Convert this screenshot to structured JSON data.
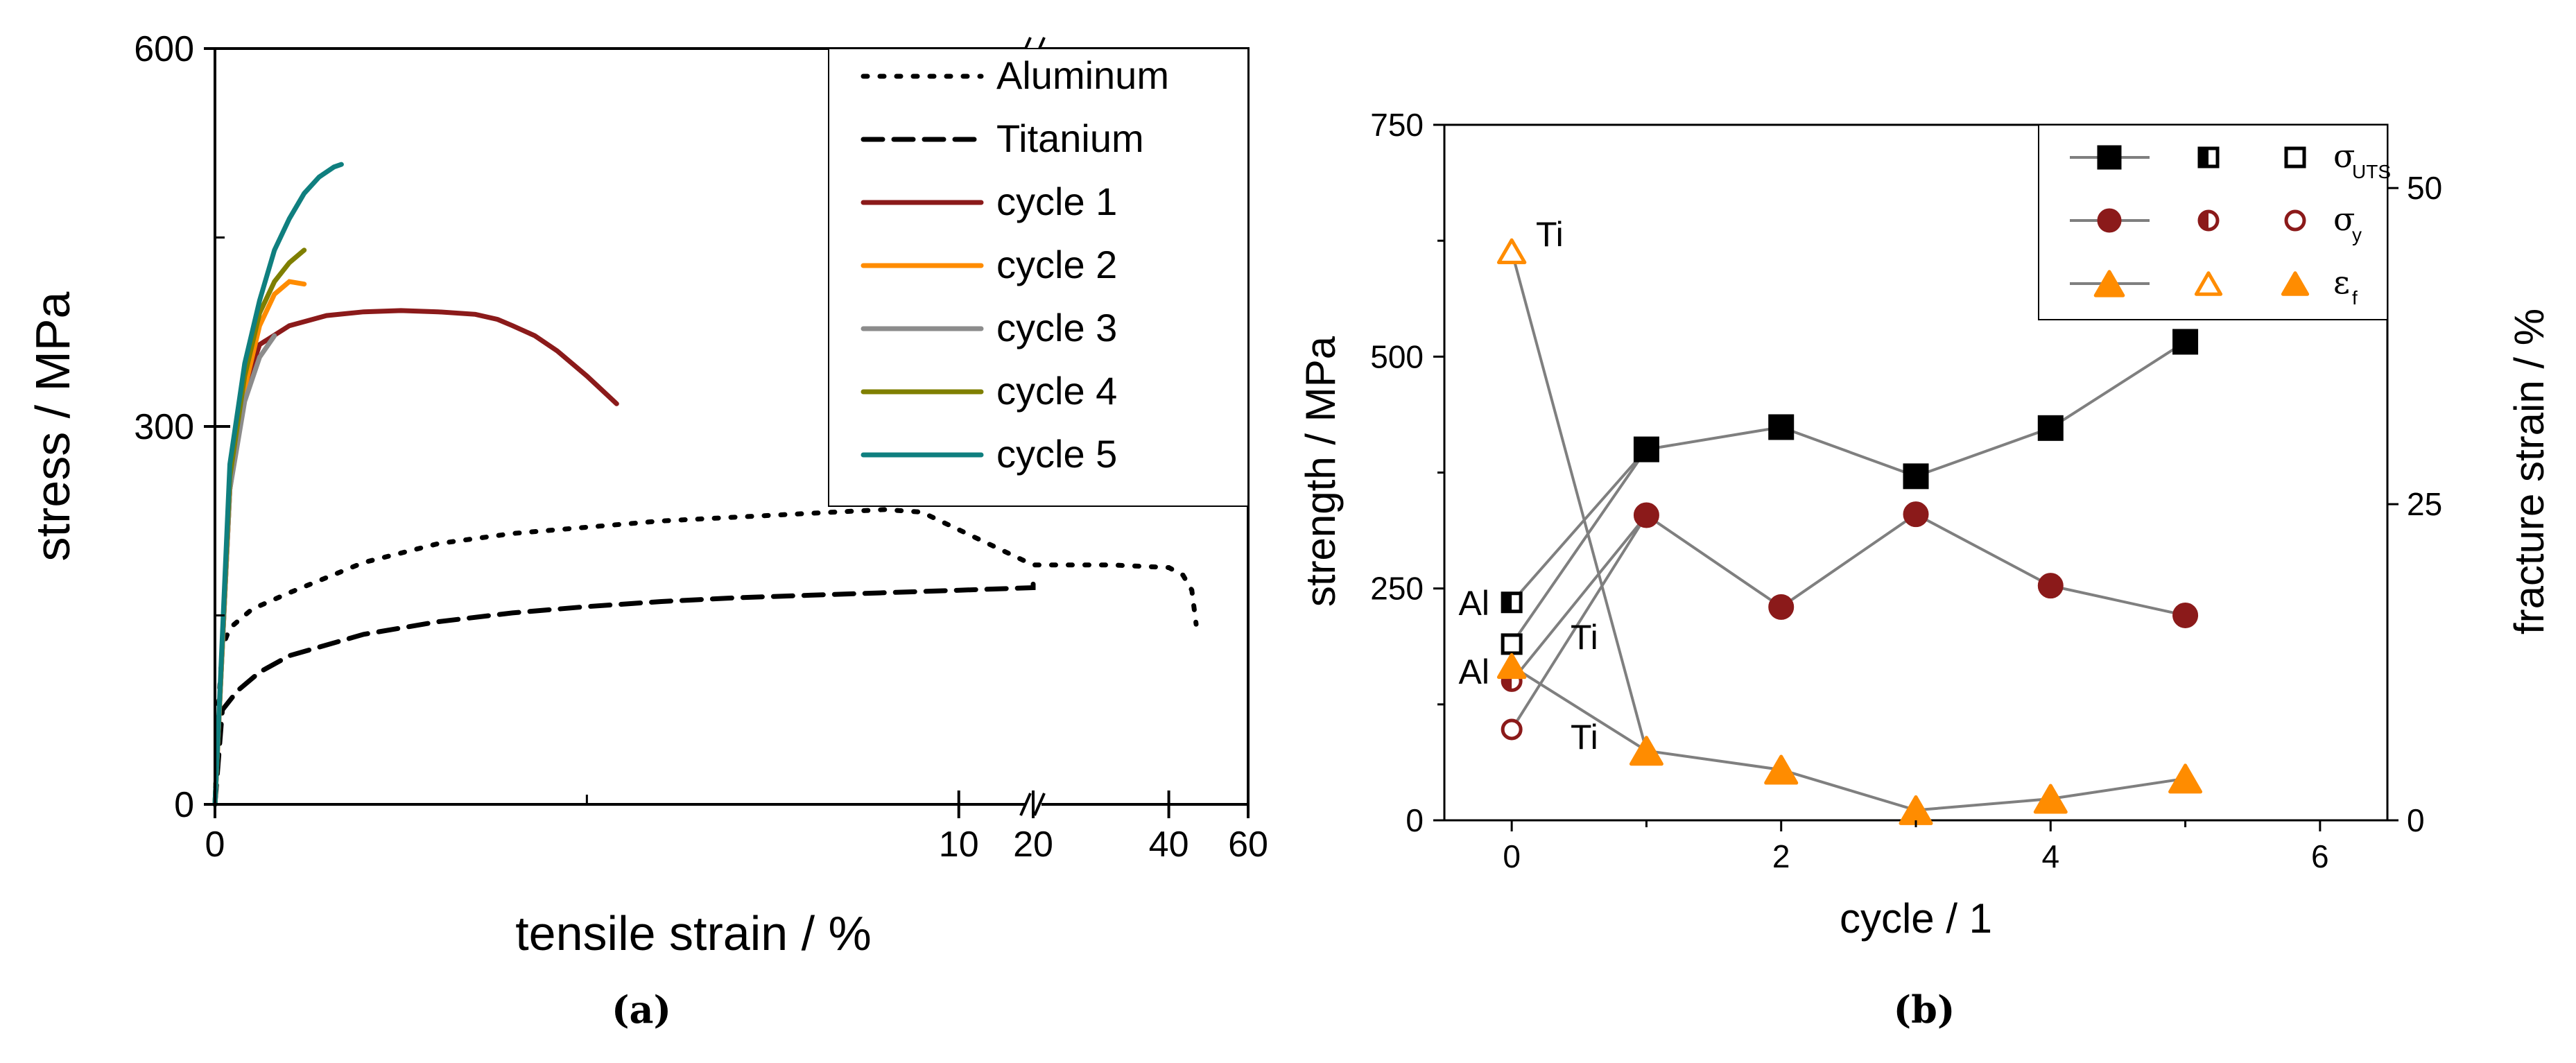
{
  "chart_data": [
    {
      "type": "line",
      "panel": "a",
      "caption": "(a)",
      "xlabel": "tensile strain / %",
      "ylabel": "stress / MPa",
      "x_ticks": [
        "0",
        "10",
        "20",
        "40",
        "60"
      ],
      "y_ticks": [
        "0",
        "300",
        "600"
      ],
      "x_axis_break": "between 11 and 20 % (broken axis, log-like upper segment 20–60 %)",
      "xlim_segment1": [
        0,
        11
      ],
      "xlim_segment2": [
        20,
        60
      ],
      "ylim": [
        0,
        600
      ],
      "legend_position": "top-right",
      "series": [
        {
          "name": "Aluminum",
          "style": "dotted",
          "color": "#000000",
          "x": [
            0,
            0.05,
            0.1,
            0.2,
            0.5,
            1,
            2,
            3,
            4,
            5,
            6,
            7,
            8,
            9,
            9.5,
            20,
            30,
            40,
            43,
            45,
            46
          ],
          "y": [
            0,
            80,
            125,
            140,
            155,
            168,
            192,
            207,
            215,
            220,
            225,
            228,
            231,
            234,
            232,
            190,
            190,
            188,
            182,
            170,
            143
          ]
        },
        {
          "name": "Titanium",
          "style": "dashed",
          "color": "#000000",
          "x": [
            0,
            0.1,
            0.3,
            0.6,
            1,
            2,
            3,
            4,
            5,
            6,
            7,
            8,
            9,
            10,
            11,
            20
          ],
          "y": [
            0,
            75,
            90,
            105,
            118,
            135,
            145,
            152,
            157,
            161,
            164,
            166,
            168,
            170,
            172,
            182
          ]
        },
        {
          "name": "cycle 1",
          "style": "solid",
          "color": "#8B1A1A",
          "x": [
            0,
            0.2,
            0.4,
            0.6,
            1,
            1.5,
            2,
            2.5,
            3,
            3.5,
            3.8,
            4,
            4.3,
            4.6,
            5,
            5.4
          ],
          "y": [
            0,
            250,
            330,
            365,
            380,
            388,
            391,
            392,
            391,
            389,
            385,
            380,
            372,
            360,
            340,
            318
          ]
        },
        {
          "name": "cycle 2",
          "style": "solid",
          "color": "#FF8C00",
          "x": [
            0,
            0.2,
            0.4,
            0.6,
            0.8,
            1.0,
            1.2
          ],
          "y": [
            0,
            250,
            330,
            380,
            405,
            415,
            413
          ]
        },
        {
          "name": "cycle 3",
          "style": "solid",
          "color": "#8C8C8C",
          "x": [
            0,
            0.2,
            0.4,
            0.6,
            0.8
          ],
          "y": [
            0,
            250,
            320,
            355,
            372
          ]
        },
        {
          "name": "cycle 4",
          "style": "solid",
          "color": "#7F7F00",
          "x": [
            0,
            0.2,
            0.4,
            0.6,
            0.8,
            1.0,
            1.2
          ],
          "y": [
            0,
            260,
            340,
            390,
            415,
            430,
            440
          ]
        },
        {
          "name": "cycle 5",
          "style": "solid",
          "color": "#0F7F7F",
          "x": [
            0,
            0.2,
            0.4,
            0.6,
            0.8,
            1.0,
            1.2,
            1.4,
            1.6,
            1.7
          ],
          "y": [
            0,
            270,
            350,
            400,
            440,
            465,
            485,
            498,
            506,
            508
          ]
        }
      ]
    },
    {
      "type": "scatter",
      "panel": "b",
      "caption": "(b)",
      "xlabel": "cycle / 1",
      "ylabel": "strength / MPa",
      "y2label": "fracture strain / %",
      "x_ticks": [
        "0",
        "2",
        "4",
        "6"
      ],
      "y_ticks": [
        "0",
        "250",
        "500",
        "750"
      ],
      "y2_ticks": [
        "0",
        "25",
        "50"
      ],
      "xlim": [
        -0.5,
        6.5
      ],
      "ylim": [
        0,
        750
      ],
      "y2lim": [
        0,
        55
      ],
      "legend_position": "top-right",
      "legend": [
        {
          "symbol": "σ",
          "subscript": "UTS",
          "color": "#000000",
          "marker": "square"
        },
        {
          "symbol": "σ",
          "subscript": "y",
          "color": "#8B1A1A",
          "marker": "circle"
        },
        {
          "symbol": "ε",
          "subscript": "f",
          "color": "#FF8C00",
          "marker": "triangle"
        }
      ],
      "annotations": [
        {
          "text": "Ti",
          "at": [
            0,
            614
          ]
        },
        {
          "text": "Al",
          "at": [
            0,
            235
          ]
        },
        {
          "text": "Ti",
          "at": [
            0,
            190
          ]
        },
        {
          "text": "Al",
          "at": [
            0,
            155
          ]
        },
        {
          "text": "Ti",
          "at": [
            0,
            98
          ]
        }
      ],
      "series": [
        {
          "name": "σUTS",
          "color": "#000000",
          "marker": "square",
          "x": [
            1,
            2,
            3,
            4,
            5
          ],
          "y": [
            400,
            424,
            371,
            423,
            516
          ],
          "reference": [
            {
              "label": "Al",
              "x": 0,
              "y": 235,
              "fill": "half"
            },
            {
              "label": "Ti",
              "x": 0,
              "y": 190,
              "fill": "open"
            }
          ]
        },
        {
          "name": "σy",
          "color": "#8B1A1A",
          "marker": "circle",
          "x": [
            1,
            2,
            3,
            4,
            5
          ],
          "y": [
            329,
            230,
            330,
            253,
            221
          ],
          "reference": [
            {
              "label": "Al",
              "x": 0,
              "y": 150,
              "fill": "half"
            },
            {
              "label": "Ti",
              "x": 0,
              "y": 98,
              "fill": "open"
            }
          ]
        },
        {
          "name": "εf",
          "color": "#FF8C00",
          "marker": "triangle",
          "axis": "right",
          "x": [
            1,
            2,
            3,
            4,
            5
          ],
          "y": [
            5.5,
            4,
            0.8,
            1.7,
            3.3
          ],
          "reference": [
            {
              "label": "Al",
              "x": 0,
              "y": 12.2,
              "fill": "solid"
            },
            {
              "label": "Ti",
              "x": 0,
              "y": 45,
              "fill": "open"
            }
          ]
        }
      ]
    }
  ]
}
